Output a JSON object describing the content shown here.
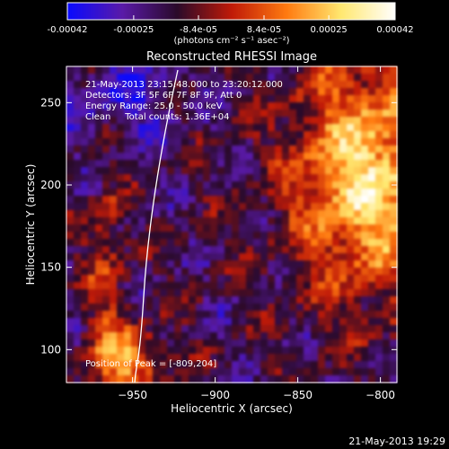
{
  "colorbar": {
    "tick_labels": [
      "-0.00042",
      "-0.00025",
      "-8.4e-05",
      "8.4e-05",
      "0.00025",
      "0.00042"
    ],
    "tick_values": [
      -0.00042,
      -0.00025,
      -8.4e-05,
      8.4e-05,
      0.00025,
      0.00042
    ],
    "range": [
      -0.00042,
      0.00042
    ],
    "unit_label": "(photons cm⁻² s⁻¹ asec⁻²)"
  },
  "chart_data": {
    "type": "heatmap",
    "title": "Reconstructed RHESSI Image",
    "xlabel": "Heliocentric X (arcsec)",
    "ylabel": "Heliocentric Y (arcsec)",
    "xlim": [
      -990,
      -790
    ],
    "ylim": [
      80,
      272
    ],
    "x_ticks": [
      -950,
      -900,
      -850,
      -800
    ],
    "x_tick_labels": [
      "−950",
      "−900",
      "−850",
      "−800"
    ],
    "y_ticks": [
      100,
      150,
      200,
      250
    ],
    "y_tick_labels": [
      "100",
      "150",
      "200",
      "250"
    ],
    "annotations": [
      "21-May-2013 23:15:48.000 to 23:20:12.000",
      "Detectors: 3F 5F 6F 7F 8F 9F, Att 0",
      "Energy Range: 25.0 - 50.0 keV",
      "Clean     Total counts: 1.36E+04"
    ],
    "peak_label": "Position of Peak = [-809,204]",
    "peak_position": [
      -809,
      204
    ],
    "colormap": [
      "#0a0aff",
      "#5a1aa8",
      "#2a0a2a",
      "#c01a08",
      "#ff7a10",
      "#ffe870",
      "#ffffff"
    ]
  },
  "footer": {
    "timestamp": "21-May-2013 19:29"
  }
}
